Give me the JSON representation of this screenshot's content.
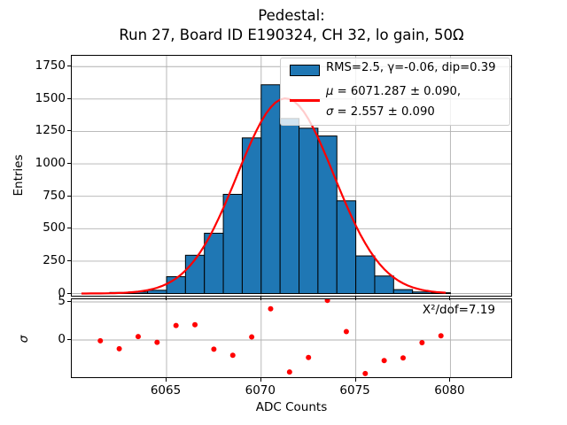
{
  "title": {
    "line1": "Pedestal:",
    "line2": "Run 27, Board ID E190324, CH 32, lo gain, 50Ω"
  },
  "legend": {
    "hist_label": "RMS=2.5, γ=-0.06, dip=0.39",
    "fit_mu_symbol": "μ",
    "fit_mu_rest": " = 6071.287 ± 0.090,",
    "fit_sigma_symbol": "σ",
    "fit_sigma_rest": " = 2.557 ± 0.090"
  },
  "colors": {
    "bar_fill": "#1f77b4",
    "bar_edge": "#000000",
    "fit_line": "#ff0000",
    "residual_marker": "#ff0000",
    "grid": "#b0b0b0"
  },
  "chart_data": [
    {
      "type": "bar",
      "title": "Pedestal:\nRun 27, Board ID E190324, CH 32, lo gain, 50Ω",
      "xlabel": "ADC Counts",
      "ylabel": "Entries",
      "bin_edges": [
        6061,
        6062,
        6063,
        6064,
        6065,
        6066,
        6067,
        6068,
        6069,
        6070,
        6071,
        6072,
        6073,
        6074,
        6075,
        6076,
        6077,
        6078,
        6079,
        6080
      ],
      "counts": [
        3,
        8,
        12,
        25,
        130,
        295,
        465,
        765,
        1200,
        1610,
        1350,
        1275,
        1215,
        715,
        290,
        135,
        30,
        12,
        6
      ],
      "xticks": [
        6065,
        6070,
        6075,
        6080
      ],
      "yticks": [
        0,
        250,
        500,
        750,
        1000,
        1250,
        1500,
        1750
      ],
      "xlim": [
        6059.9,
        6083.2
      ],
      "ylim": [
        0,
        1841
      ],
      "grid": true,
      "legend_position": "upper right",
      "fit": {
        "type": "gaussian",
        "mu": 6071.287,
        "mu_err": 0.09,
        "sigma": 2.557,
        "sigma_err": 0.09,
        "amplitude": 1505
      },
      "stats": {
        "rms": 2.5,
        "gamma": -0.06,
        "dip": 0.39
      }
    },
    {
      "type": "scatter",
      "ylabel": "σ",
      "x": [
        6061.5,
        6062.5,
        6063.5,
        6064.5,
        6065.5,
        6066.5,
        6067.5,
        6068.5,
        6069.5,
        6070.5,
        6071.5,
        6072.5,
        6073.5,
        6074.5,
        6075.5,
        6076.5,
        6077.5,
        6078.5,
        6079.5
      ],
      "values": [
        -0.1,
        -1.15,
        0.45,
        -0.3,
        1.9,
        2.0,
        -1.2,
        -2.0,
        0.4,
        4.1,
        -4.2,
        -2.3,
        5.2,
        1.1,
        -4.4,
        -2.7,
        -2.35,
        -0.35,
        0.55
      ],
      "yticks": [
        0,
        5
      ],
      "ylim": [
        -5.1,
        5.5
      ],
      "grid": true,
      "annotation": "Χ²/dof=7.19"
    }
  ]
}
